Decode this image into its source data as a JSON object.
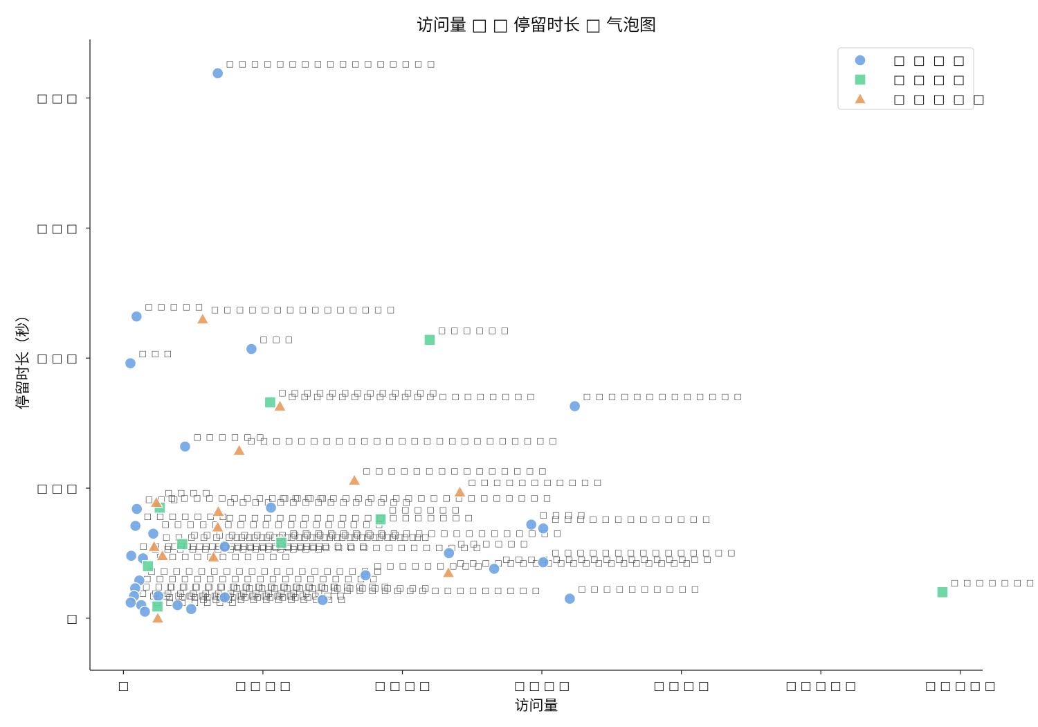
{
  "chart_data": {
    "type": "scatter",
    "title": "访问量 □ □ 停留时长 □ 气泡图",
    "xlabel": "访问量",
    "ylabel": "停留时长（秒）",
    "xlim": [
      -12000,
      308000
    ],
    "ylim": [
      -40,
      445
    ],
    "xticks": [
      {
        "value": 0,
        "label": "□"
      },
      {
        "value": 50000,
        "label": "□ □ □ □"
      },
      {
        "value": 100000,
        "label": "□ □ □ □"
      },
      {
        "value": 150000,
        "label": "□ □ □ □"
      },
      {
        "value": 200000,
        "label": "□ □ □ □"
      },
      {
        "value": 250000,
        "label": "□ □ □ □ □"
      },
      {
        "value": 300000,
        "label": "□ □ □ □ □"
      }
    ],
    "yticks": [
      {
        "value": 0,
        "label": "□"
      },
      {
        "value": 100,
        "label": "□ □ □"
      },
      {
        "value": 200,
        "label": "□ □ □"
      },
      {
        "value": 300,
        "label": "□ □ □"
      },
      {
        "value": 400,
        "label": "□ □ □"
      }
    ],
    "grid": false,
    "legend": {
      "position": "top-right"
    },
    "series": [
      {
        "name": "□ □ □ □",
        "marker": "circle",
        "color": "#6ea4e3",
        "points": [
          {
            "x": 33800,
            "y": 419,
            "label": "□ □ □ □ □ □ □ □ □ □ □ □ □ □ □ □ □"
          },
          {
            "x": 4700,
            "y": 232,
            "label": "□ □ □ □ □"
          },
          {
            "x": 2500,
            "y": 196,
            "label": "□ □ □"
          },
          {
            "x": 45900,
            "y": 207,
            "label": "□ □ □"
          },
          {
            "x": 161800,
            "y": 163,
            "label": "□ □ □ □ □ □ □ □ □ □ □ □ □"
          },
          {
            "x": 22100,
            "y": 132,
            "label": "□ □ □ □ □ □"
          },
          {
            "x": 52900,
            "y": 85,
            "label": "□ □ □ □ □ □ □ □ □ □ □ □ □ □ □ □ □ □ □ □ □ □"
          },
          {
            "x": 4800,
            "y": 84,
            "label": "□ □ □"
          },
          {
            "x": 4300,
            "y": 71,
            "label": "□ □ □ □ □ □ □"
          },
          {
            "x": 10700,
            "y": 65,
            "label": "□ □ □ □ □ □ □ □ □ □ □ □ □ □ □ □ □ □"
          },
          {
            "x": 146200,
            "y": 72,
            "label": "□ □ □ □"
          },
          {
            "x": 150500,
            "y": 69,
            "label": "□ □ □ □ □ □ □ □ □ □ □ □ □"
          },
          {
            "x": 2800,
            "y": 48,
            "label": "□ □ □ □ □ □ □ □ □ □ □ □ □ □ □"
          },
          {
            "x": 7000,
            "y": 46,
            "label": "□ □ □ □ □ □ □ □ □ □ □ □ □ □"
          },
          {
            "x": 36300,
            "y": 55,
            "label": "□ □ □ □ □ □ □ □ □ □ □ □ □ □ □ □"
          },
          {
            "x": 116700,
            "y": 50,
            "label": "□ □ □ □ □ □"
          },
          {
            "x": 132900,
            "y": 38,
            "label": "□ □ □ □ □ □ □ □ □ □ □ □ □ □ □ □ □"
          },
          {
            "x": 150500,
            "y": 43,
            "label": "□ □ □ □ □ □ □ □ □ □ □ □ □ □ □"
          },
          {
            "x": 86800,
            "y": 33,
            "label": "□ □ □ □ □ □ □ □ □"
          },
          {
            "x": 5700,
            "y": 29,
            "label": "□ □ □ □ □ □ □ □ □ □ □ □ □ □ □ □ □ □ □"
          },
          {
            "x": 4200,
            "y": 23,
            "label": "□ □ □ □ □ □ □ □ □ □ □ □ □ □ □ □ □ □ □"
          },
          {
            "x": 3800,
            "y": 17,
            "label": "□ □ □ □ □ □ □ □ □ □ □ □ □ □ □ □ □ □ □ □"
          },
          {
            "x": 2600,
            "y": 12,
            "label": "□ □ □ □ □ □ □ □ □ □ □ □ □ □ □"
          },
          {
            "x": 6400,
            "y": 10,
            "label": "□ □ □ □ □ □ □ □ □ □ □ □"
          },
          {
            "x": 7700,
            "y": 5,
            "label": "□ □ □ □ □ □ □"
          },
          {
            "x": 12500,
            "y": 17,
            "label": "□ □ □ □ □ □ □ □ □ □ □ □ □ □"
          },
          {
            "x": 19400,
            "y": 10,
            "label": "□ □ □ □ □ □ □ □ □ □ □ □ □"
          },
          {
            "x": 24300,
            "y": 7,
            "label": "□ □ □ □ □ □ □ □ □ □ □ □"
          },
          {
            "x": 36300,
            "y": 16,
            "label": "□ □ □ □ □ □ □ □ □ □ □ □ □ □ □ □"
          },
          {
            "x": 71400,
            "y": 14,
            "label": "□ □ □ □ □ □ □ □ □ □ □ □ □ □ □ □ □"
          },
          {
            "x": 160000,
            "y": 15,
            "label": "□ □ □ □ □ □ □ □ □ □"
          }
        ]
      },
      {
        "name": "□ □ □ □",
        "marker": "square",
        "color": "#5fd49a",
        "points": [
          {
            "x": 109800,
            "y": 214,
            "label": "□ □ □ □ □ □"
          },
          {
            "x": 52600,
            "y": 166,
            "label": "□ □ □ □ □ □ □ □ □ □ □ □ □"
          },
          {
            "x": 92200,
            "y": 76,
            "label": "□ □ □ □ □ □"
          },
          {
            "x": 13000,
            "y": 85,
            "label": "□ □ □ □ □ □ □ □ □ □ □ □ □"
          },
          {
            "x": 21100,
            "y": 57,
            "label": "□ □ □ □ □ □ □ □ □ □ □ □ □ □ □ □ □"
          },
          {
            "x": 56600,
            "y": 58,
            "label": "□ □ □ □ □ □ □ □ □ □ □ □ □ □ □ □ □ □ □ □ □ □"
          },
          {
            "x": 8800,
            "y": 40,
            "label": "□ □ □ □ □ □ □ □ □ □ □"
          },
          {
            "x": 12200,
            "y": 9,
            "label": "□ □ □ □ □ □ □ □ □ □ □ □"
          },
          {
            "x": 293600,
            "y": 20,
            "label": "□ □ □ □ □ □ □ □"
          }
        ]
      },
      {
        "name": "□ □ □ □ □",
        "marker": "triangle",
        "color": "#e99a59",
        "points": [
          {
            "x": 28400,
            "y": 230,
            "label": "□ □ □ □ □ □ □ □ □ □ □ □ □ □ □"
          },
          {
            "x": 56100,
            "y": 163,
            "label": "□ □ □ □ □ □ □ □ □ □ □ □ □ □ □ □ □ □ □ □"
          },
          {
            "x": 41500,
            "y": 129,
            "label": "□ □ □ □ □ □ □ □ □ □ □ □ □ □ □ □ □ □ □ □ □ □ □ □ □"
          },
          {
            "x": 82800,
            "y": 106,
            "label": "□ □ □ □ □ □ □ □ □ □ □ □ □ □ □"
          },
          {
            "x": 120600,
            "y": 97,
            "label": "□ □ □ □ □ □ □ □ □ □ □"
          },
          {
            "x": 11800,
            "y": 89,
            "label": "□ □ □ □"
          },
          {
            "x": 34000,
            "y": 82,
            "label": "□ □ □ □ □ □ □ □ □ □ □ □ □ □ □"
          },
          {
            "x": 33800,
            "y": 70,
            "label": "□ □ □ □ □ □ □ □ □ □ □ □ □ □ □ □ □ □ □ □"
          },
          {
            "x": 11000,
            "y": 55,
            "label": "□ □ □ □ □ □ □ □ □ □ □ □ □ □ □ □ □ □ □ □ □"
          },
          {
            "x": 14000,
            "y": 48,
            "label": "□ □ □ □ □ □ □ □ □ □ □ □ □ □ □ □"
          },
          {
            "x": 32300,
            "y": 47,
            "label": "□ □ □ □ □ □ □ □ □ □ □ □ □ □ □ □ □ □ □ □ □"
          },
          {
            "x": 116500,
            "y": 35,
            "label": "□ □ □ □ □ □ □ □ □ □ □ □ □ □ □ □ □ □ □"
          },
          {
            "x": 12300,
            "y": 0,
            "label": ""
          }
        ]
      }
    ]
  }
}
